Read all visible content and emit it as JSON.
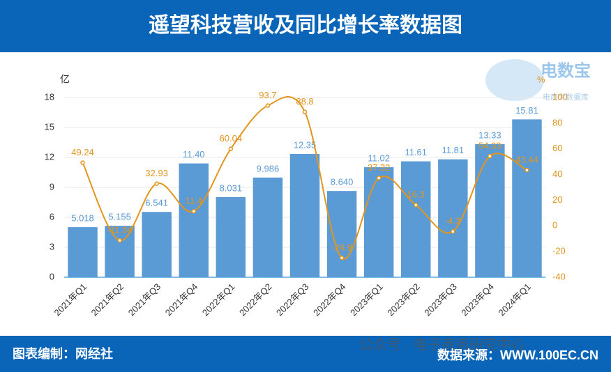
{
  "header": {
    "title": "遥望科技营收及同比增长率数据图"
  },
  "logo": {
    "name": "电数宝",
    "tagline": "电商大数据库"
  },
  "footer": {
    "left": "图表编制：网经社",
    "watermark": "公众号 · 电子商务研究中心",
    "right": "数据来源：WWW.100EC.CN"
  },
  "chart_data": {
    "type": "bar-line",
    "y_label": "亿",
    "y2_label": "%",
    "categories": [
      "2021年Q1",
      "2021年Q2",
      "2021年Q3",
      "2021年Q4",
      "2022年Q1",
      "2022年Q2",
      "2022年Q3",
      "2022年Q4",
      "2023年Q1",
      "2023年Q2",
      "2023年Q3",
      "2023年Q4",
      "2024年Q1"
    ],
    "series": [
      {
        "type": "bar",
        "color": "#5b9bd5",
        "values": [
          5.018,
          5.155,
          6.541,
          11.4,
          8.031,
          9.986,
          12.35,
          8.64,
          11.02,
          11.61,
          11.81,
          13.33,
          15.81
        ],
        "value_labels": [
          "5.018",
          "5.155",
          "6.541",
          "11.40",
          "8.031",
          "9.986",
          "12.35",
          "8.640",
          "11.02",
          "11.61",
          "11.81",
          "13.33",
          "15.81"
        ]
      },
      {
        "type": "line",
        "axis": "y2",
        "color": "#e3951c",
        "values": [
          49.24,
          -11.34,
          32.93,
          11.4,
          60.04,
          93.7,
          88.8,
          -24.9,
          37.32,
          16.3,
          -4.3,
          54.33,
          43.44
        ]
      }
    ],
    "ylim": [
      0,
      18
    ],
    "yticks": [
      0,
      3,
      6,
      9,
      12,
      15,
      18
    ],
    "y2lim": [
      -40,
      100
    ],
    "y2ticks": [
      -40,
      -20,
      0,
      20,
      40,
      60,
      80,
      100
    ],
    "grid": true
  }
}
